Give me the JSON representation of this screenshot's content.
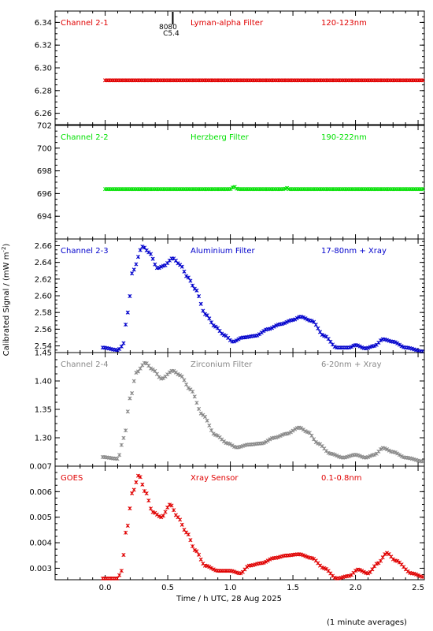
{
  "figure": {
    "ylabel": "Calibrated Signal / (mW m",
    "ylabel_sup": "-2",
    "ylabel_end": ")",
    "xlabel": "Time / h UTC, 28 Aug 2025",
    "footnote": "(1 minute averages)",
    "event_marker": {
      "x": 0.54,
      "label1": "8080",
      "label2": "C5.4"
    },
    "xlim": [
      -0.4,
      2.55
    ],
    "xticks": [
      "0.0",
      "0.5",
      "1.0",
      "1.5",
      "2.0",
      "2.5"
    ]
  },
  "chart_data": [
    {
      "type": "scatter",
      "channel": "Channel 2-1",
      "filter": "Lyman-alpha Filter",
      "band": "120-123nm",
      "color": "#e00000",
      "ylim": [
        6.25,
        6.35
      ],
      "yticks": [
        "6.26",
        "6.28",
        "6.30",
        "6.32",
        "6.34"
      ],
      "series": [
        {
          "x_start": 0.0,
          "x_end": 2.55,
          "step": 0.0167,
          "points": [
            [
              0.0,
              6.289
            ],
            [
              2.55,
              6.289
            ]
          ]
        }
      ]
    },
    {
      "type": "scatter",
      "channel": "Channel 2-2",
      "filter": "Herzberg Filter",
      "band": "190-222nm",
      "color": "#00e000",
      "ylim": [
        692,
        702
      ],
      "yticks": [
        "694",
        "696",
        "698",
        "700",
        "702"
      ],
      "series": [
        {
          "x_start": 0.0,
          "x_end": 2.55,
          "step": 0.0167,
          "points": [
            [
              0.0,
              696.4
            ],
            [
              1.0,
              696.4
            ],
            [
              1.03,
              696.6
            ],
            [
              1.06,
              696.4
            ],
            [
              1.43,
              696.4
            ],
            [
              1.45,
              696.5
            ],
            [
              1.47,
              696.4
            ],
            [
              2.55,
              696.4
            ]
          ]
        }
      ]
    },
    {
      "type": "scatter",
      "channel": "Channel 2-3",
      "filter": "Aluminium Filter",
      "band": "17-80nm + Xray",
      "color": "#0000cc",
      "ylim": [
        2.532,
        2.668
      ],
      "yticks": [
        "2.54",
        "2.56",
        "2.58",
        "2.60",
        "2.62",
        "2.64",
        "2.66"
      ],
      "series": [
        {
          "x_start": -0.02,
          "x_end": 2.55,
          "step": 0.0167,
          "points": [
            [
              -0.02,
              2.538
            ],
            [
              0.1,
              2.535
            ],
            [
              0.14,
              2.54
            ],
            [
              0.18,
              2.58
            ],
            [
              0.22,
              2.63
            ],
            [
              0.3,
              2.659
            ],
            [
              0.35,
              2.652
            ],
            [
              0.42,
              2.633
            ],
            [
              0.47,
              2.636
            ],
            [
              0.54,
              2.645
            ],
            [
              0.6,
              2.637
            ],
            [
              0.66,
              2.622
            ],
            [
              0.72,
              2.608
            ],
            [
              0.8,
              2.578
            ],
            [
              0.88,
              2.563
            ],
            [
              0.95,
              2.553
            ],
            [
              1.02,
              2.545
            ],
            [
              1.1,
              2.55
            ],
            [
              1.2,
              2.552
            ],
            [
              1.3,
              2.56
            ],
            [
              1.4,
              2.566
            ],
            [
              1.5,
              2.571
            ],
            [
              1.56,
              2.575
            ],
            [
              1.65,
              2.57
            ],
            [
              1.75,
              2.552
            ],
            [
              1.85,
              2.538
            ],
            [
              1.95,
              2.538
            ],
            [
              2.0,
              2.541
            ],
            [
              2.08,
              2.537
            ],
            [
              2.15,
              2.54
            ],
            [
              2.22,
              2.548
            ],
            [
              2.3,
              2.545
            ],
            [
              2.4,
              2.538
            ],
            [
              2.55,
              2.533
            ]
          ]
        }
      ]
    },
    {
      "type": "scatter",
      "channel": "Channel 2-4",
      "filter": "Zirconium Filter",
      "band": "6-20nm + Xray",
      "color": "#888888",
      "ylim": [
        1.25,
        1.45
      ],
      "yticks": [
        "1.30",
        "1.35",
        "1.40",
        "1.45"
      ],
      "series": [
        {
          "x_start": -0.02,
          "x_end": 2.55,
          "step": 0.0167,
          "points": [
            [
              -0.02,
              1.266
            ],
            [
              0.1,
              1.263
            ],
            [
              0.15,
              1.3
            ],
            [
              0.2,
              1.37
            ],
            [
              0.25,
              1.415
            ],
            [
              0.32,
              1.432
            ],
            [
              0.38,
              1.42
            ],
            [
              0.45,
              1.404
            ],
            [
              0.54,
              1.418
            ],
            [
              0.6,
              1.41
            ],
            [
              0.68,
              1.385
            ],
            [
              0.78,
              1.34
            ],
            [
              0.88,
              1.305
            ],
            [
              0.98,
              1.29
            ],
            [
              1.05,
              1.283
            ],
            [
              1.15,
              1.288
            ],
            [
              1.25,
              1.29
            ],
            [
              1.35,
              1.3
            ],
            [
              1.45,
              1.307
            ],
            [
              1.55,
              1.318
            ],
            [
              1.62,
              1.31
            ],
            [
              1.7,
              1.29
            ],
            [
              1.8,
              1.272
            ],
            [
              1.9,
              1.265
            ],
            [
              2.0,
              1.27
            ],
            [
              2.08,
              1.265
            ],
            [
              2.15,
              1.27
            ],
            [
              2.22,
              1.282
            ],
            [
              2.3,
              1.275
            ],
            [
              2.4,
              1.265
            ],
            [
              2.55,
              1.258
            ]
          ]
        }
      ]
    },
    {
      "type": "scatter",
      "channel": "GOES",
      "filter": "Xray Sensor",
      "band": "0.1-0.8nm",
      "color": "#e00000",
      "ylim": [
        0.00255,
        0.007
      ],
      "yticks": [
        "0.003",
        "0.004",
        "0.005",
        "0.006",
        "0.007"
      ],
      "series": [
        {
          "x_start": -0.02,
          "x_end": 2.55,
          "step": 0.0167,
          "points": [
            [
              -0.02,
              0.0026
            ],
            [
              0.1,
              0.0026
            ],
            [
              0.13,
              0.0029
            ],
            [
              0.17,
              0.0045
            ],
            [
              0.22,
              0.006
            ],
            [
              0.27,
              0.00665
            ],
            [
              0.32,
              0.006
            ],
            [
              0.38,
              0.0052
            ],
            [
              0.45,
              0.005
            ],
            [
              0.52,
              0.0055
            ],
            [
              0.58,
              0.005
            ],
            [
              0.65,
              0.0044
            ],
            [
              0.72,
              0.0037
            ],
            [
              0.8,
              0.0031
            ],
            [
              0.9,
              0.0029
            ],
            [
              1.0,
              0.0029
            ],
            [
              1.08,
              0.0028
            ],
            [
              1.15,
              0.0031
            ],
            [
              1.25,
              0.0032
            ],
            [
              1.35,
              0.0034
            ],
            [
              1.45,
              0.0035
            ],
            [
              1.55,
              0.00355
            ],
            [
              1.65,
              0.0034
            ],
            [
              1.75,
              0.003
            ],
            [
              1.85,
              0.0026
            ],
            [
              1.95,
              0.0027
            ],
            [
              2.02,
              0.00295
            ],
            [
              2.1,
              0.0028
            ],
            [
              2.18,
              0.0032
            ],
            [
              2.25,
              0.0036
            ],
            [
              2.32,
              0.0033
            ],
            [
              2.45,
              0.0028
            ],
            [
              2.55,
              0.00265
            ]
          ]
        }
      ]
    }
  ]
}
